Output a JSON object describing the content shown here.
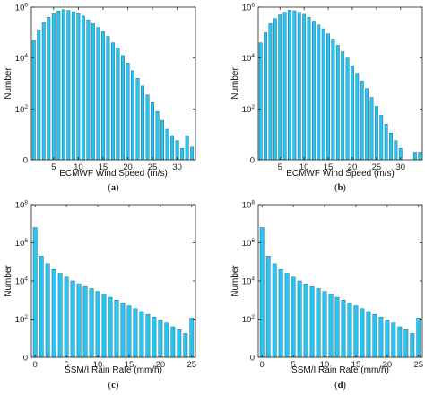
{
  "chart_data": [
    {
      "type": "bar",
      "panel_label": "(a)",
      "xlabel": "ECMWF Wind Speed (m/s)",
      "ylabel": "Number",
      "yscale": "log",
      "ylim_log10": [
        0,
        6
      ],
      "ytick_exponents": [
        0,
        2,
        4,
        6
      ],
      "xticks": [
        5,
        10,
        15,
        20,
        25,
        30
      ],
      "xlim": [
        0.5,
        33.7
      ],
      "bar_color": "#29c5f2",
      "x": [
        1,
        2,
        3,
        4,
        5,
        6,
        7,
        8,
        9,
        10,
        11,
        12,
        13,
        14,
        15,
        16,
        17,
        18,
        19,
        20,
        21,
        22,
        23,
        24,
        25,
        26,
        27,
        28,
        29,
        30,
        31,
        32,
        33
      ],
      "log10_values": [
        4.7,
        5.1,
        5.4,
        5.6,
        5.75,
        5.85,
        5.9,
        5.87,
        5.82,
        5.75,
        5.65,
        5.5,
        5.35,
        5.2,
        5.05,
        4.85,
        4.6,
        4.4,
        4.1,
        3.8,
        3.5,
        3.2,
        2.9,
        2.55,
        2.25,
        1.9,
        1.55,
        1.2,
        0.95,
        0.75,
        0.45,
        0.95,
        0.5
      ]
    },
    {
      "type": "bar",
      "panel_label": "(b)",
      "xlabel": "ECMWF Wind Speed (m/s)",
      "ylabel": "Number",
      "yscale": "log",
      "ylim_log10": [
        0,
        6
      ],
      "ytick_exponents": [
        0,
        2,
        4,
        6
      ],
      "xticks": [
        5,
        10,
        15,
        20,
        25,
        30
      ],
      "xlim": [
        0.5,
        34.5
      ],
      "bar_color": "#29c5f2",
      "x": [
        1,
        2,
        3,
        4,
        5,
        6,
        7,
        8,
        9,
        10,
        11,
        12,
        13,
        14,
        15,
        16,
        17,
        18,
        19,
        20,
        21,
        22,
        23,
        24,
        25,
        26,
        27,
        28,
        29,
        30,
        31,
        32,
        33,
        34
      ],
      "log10_values": [
        4.6,
        5.0,
        5.35,
        5.55,
        5.7,
        5.8,
        5.88,
        5.86,
        5.8,
        5.72,
        5.6,
        5.45,
        5.3,
        5.15,
        4.95,
        4.75,
        4.5,
        4.25,
        4.0,
        3.7,
        3.4,
        3.1,
        2.8,
        2.45,
        2.1,
        1.75,
        1.4,
        1.05,
        0.75,
        0.45,
        0,
        0,
        0.3,
        0.3
      ]
    },
    {
      "type": "bar",
      "panel_label": "(c)",
      "xlabel": "SSM/I Rain Rate (mm/h)",
      "ylabel": "Number",
      "yscale": "log",
      "ylim_log10": [
        0,
        8
      ],
      "ytick_exponents": [
        0,
        2,
        4,
        6,
        8
      ],
      "xticks": [
        0,
        5,
        10,
        15,
        20,
        25
      ],
      "xlim": [
        -0.6,
        25.6
      ],
      "bar_color": "#29c5f2",
      "x": [
        0,
        1,
        2,
        3,
        4,
        5,
        6,
        7,
        8,
        9,
        10,
        11,
        12,
        13,
        14,
        15,
        16,
        17,
        18,
        19,
        20,
        21,
        22,
        23,
        24,
        25
      ],
      "log10_values": [
        6.8,
        5.3,
        4.9,
        4.6,
        4.4,
        4.2,
        4.0,
        3.85,
        3.7,
        3.6,
        3.45,
        3.3,
        3.15,
        3.0,
        2.85,
        2.7,
        2.55,
        2.4,
        2.25,
        2.1,
        1.95,
        1.8,
        1.6,
        1.45,
        1.25,
        2.05
      ]
    },
    {
      "type": "bar",
      "panel_label": "(d)",
      "xlabel": "SSM/I Rain Rate (mm/h)",
      "ylabel": "Number",
      "yscale": "log",
      "ylim_log10": [
        0,
        8
      ],
      "ytick_exponents": [
        0,
        2,
        4,
        6,
        8
      ],
      "xticks": [
        0,
        5,
        10,
        15,
        20,
        25
      ],
      "xlim": [
        -0.6,
        25.6
      ],
      "bar_color": "#29c5f2",
      "x": [
        0,
        1,
        2,
        3,
        4,
        5,
        6,
        7,
        8,
        9,
        10,
        11,
        12,
        13,
        14,
        15,
        16,
        17,
        18,
        19,
        20,
        21,
        22,
        23,
        24,
        25
      ],
      "log10_values": [
        6.8,
        5.3,
        4.9,
        4.6,
        4.4,
        4.2,
        4.0,
        3.85,
        3.7,
        3.6,
        3.45,
        3.3,
        3.15,
        3.0,
        2.85,
        2.7,
        2.55,
        2.4,
        2.25,
        2.1,
        1.95,
        1.8,
        1.6,
        1.45,
        1.25,
        2.05
      ]
    }
  ]
}
